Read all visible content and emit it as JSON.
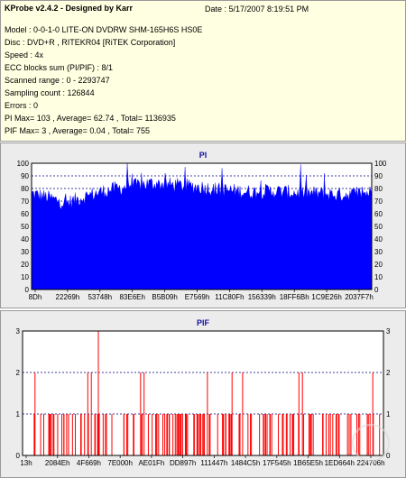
{
  "info": {
    "title": "KProbe v2.4.2 - Designed by Karr",
    "date": "Date : 5/17/2007 8:19:51 PM",
    "lines": [
      "Model : 0-0-1-0 LITE-ON DVDRW SHM-165H6S HS0E",
      "Disc : DVD+R , RITEKR04 [RiTEK Corporation]",
      "Speed : 4x",
      "ECC blocks sum (PI/PIF) : 8/1",
      "Scanned range : 0 - 2293747",
      "Sampling count : 126844",
      "Errors : 0",
      "PI Max= 103 , Average= 62.74 , Total= 1136935",
      "PIF Max= 3 , Average= 0.04 , Total= 755"
    ]
  },
  "chart_data": [
    {
      "type": "area",
      "title": "PI",
      "ylim": [
        0,
        100
      ],
      "yticks": [
        0,
        10,
        20,
        30,
        40,
        50,
        60,
        70,
        80,
        90,
        100
      ],
      "xtick_labels": [
        "8Dh",
        "22269h",
        "53748h",
        "83E6Eh",
        "B5B09h",
        "E7569h",
        "11C80Fh",
        "156339h",
        "18FF6Bh",
        "1C9E26h",
        "2037F7h"
      ],
      "grid": true,
      "color": "#0000ff",
      "max": 103,
      "average": 62.74,
      "profile_x": [
        0,
        0.03,
        0.07,
        0.1,
        0.15,
        0.2,
        0.25,
        0.3,
        0.35,
        0.4,
        0.45,
        0.5,
        0.55,
        0.6,
        0.65,
        0.7,
        0.75,
        0.8,
        0.85,
        0.9,
        0.95,
        1.0
      ],
      "profile_y": [
        76,
        74,
        71,
        68,
        73,
        77,
        80,
        82,
        84,
        83,
        82,
        81,
        79,
        78,
        77,
        78,
        77,
        76,
        76,
        75,
        76,
        77
      ],
      "peaks": [
        {
          "x": 0.28,
          "y": 100
        },
        {
          "x": 0.45,
          "y": 97
        },
        {
          "x": 0.56,
          "y": 96
        },
        {
          "x": 0.79,
          "y": 99
        },
        {
          "x": 0.86,
          "y": 92
        }
      ]
    },
    {
      "type": "bar",
      "title": "PIF",
      "ylim": [
        0,
        3
      ],
      "yticks": [
        0,
        1,
        2,
        3
      ],
      "xtick_labels": [
        "13h",
        "2084Eh",
        "4F669h",
        "7E000h",
        "AE01Fh",
        "DD897h",
        "111447h",
        "1484C5h",
        "17F545h",
        "1B65E5h",
        "1ED664h",
        "224706h"
      ],
      "grid": true,
      "color": "#ff0000",
      "max": 3,
      "average": 0.04,
      "threes": [
        0.2
      ],
      "twos": [
        0.02,
        0.17,
        0.18,
        0.32,
        0.33,
        0.51,
        0.58,
        0.61,
        0.77,
        0.78,
        0.98
      ]
    }
  ]
}
